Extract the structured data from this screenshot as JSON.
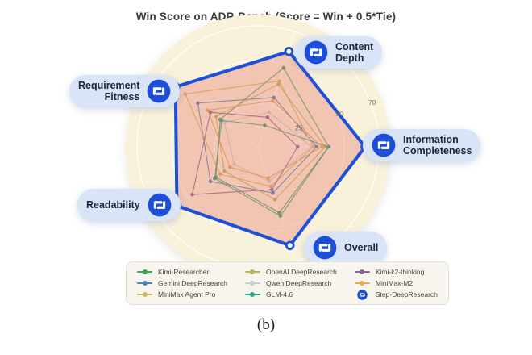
{
  "title": "Win Score on ADR-Bench (Score = Win + 0.5*Tie)",
  "caption": "(b)",
  "axis_pills": {
    "content_depth": "Content\nDepth",
    "information_completeness": "Information\nCompleteness",
    "overall": "Overall",
    "readability": "Readability",
    "requirement_fitness": "Requirement\nFitness"
  },
  "chart_data": {
    "type": "radar",
    "title": "Win Score on ADR-Bench (Score = Win + 0.5*Tie)",
    "categories": [
      "Content Depth",
      "Information Completeness",
      "Overall",
      "Readability",
      "Requirement Fitness"
    ],
    "angles_deg": [
      72,
      0,
      -72,
      -144,
      144
    ],
    "rmax": 70,
    "ticks": [
      25,
      50,
      70
    ],
    "tick_angle_deg": 19,
    "bg_color": "#f9f2da",
    "grid_color": "#ffffff",
    "step_fill": "rgba(224,105,94,0.33)",
    "highlight_series": "Step-DeepResearch",
    "legend_position": "bottom",
    "series": [
      {
        "name": "Kimi-Researcher",
        "color": "#3fa45e",
        "values": [
          48,
          41,
          40,
          30,
          27
        ]
      },
      {
        "name": "Gemini DeepResearch",
        "color": "#4d82b8",
        "values": [
          30,
          34,
          28,
          34,
          43
        ]
      },
      {
        "name": "MiniMax Agent Pro",
        "color": "#d8b35e",
        "values": [
          40,
          32,
          24,
          27,
          52
        ]
      },
      {
        "name": "OpenAI DeepResearch",
        "color": "#b9b654",
        "values": [
          38,
          39,
          32,
          24,
          30
        ]
      },
      {
        "name": "Qwen DeepResearch",
        "color": "#c9ccd0",
        "values": [
          21,
          31,
          21,
          17,
          24
        ]
      },
      {
        "name": "GLM-4.6",
        "color": "#33a38c",
        "values": [
          13,
          41,
          42,
          31,
          26
        ]
      },
      {
        "name": "Kimi-k2-thinking",
        "color": "#8f5f9e",
        "values": [
          18,
          23,
          26,
          47,
          34
        ]
      },
      {
        "name": "MiniMax-M2",
        "color": "#e3aa55",
        "values": [
          28,
          37,
          19,
          20,
          36
        ]
      },
      {
        "name": "Step-DeepResearch",
        "color": "#1d4fd7",
        "values": [
          58,
          62,
          60,
          58,
          59
        ],
        "is_step": true
      }
    ]
  }
}
